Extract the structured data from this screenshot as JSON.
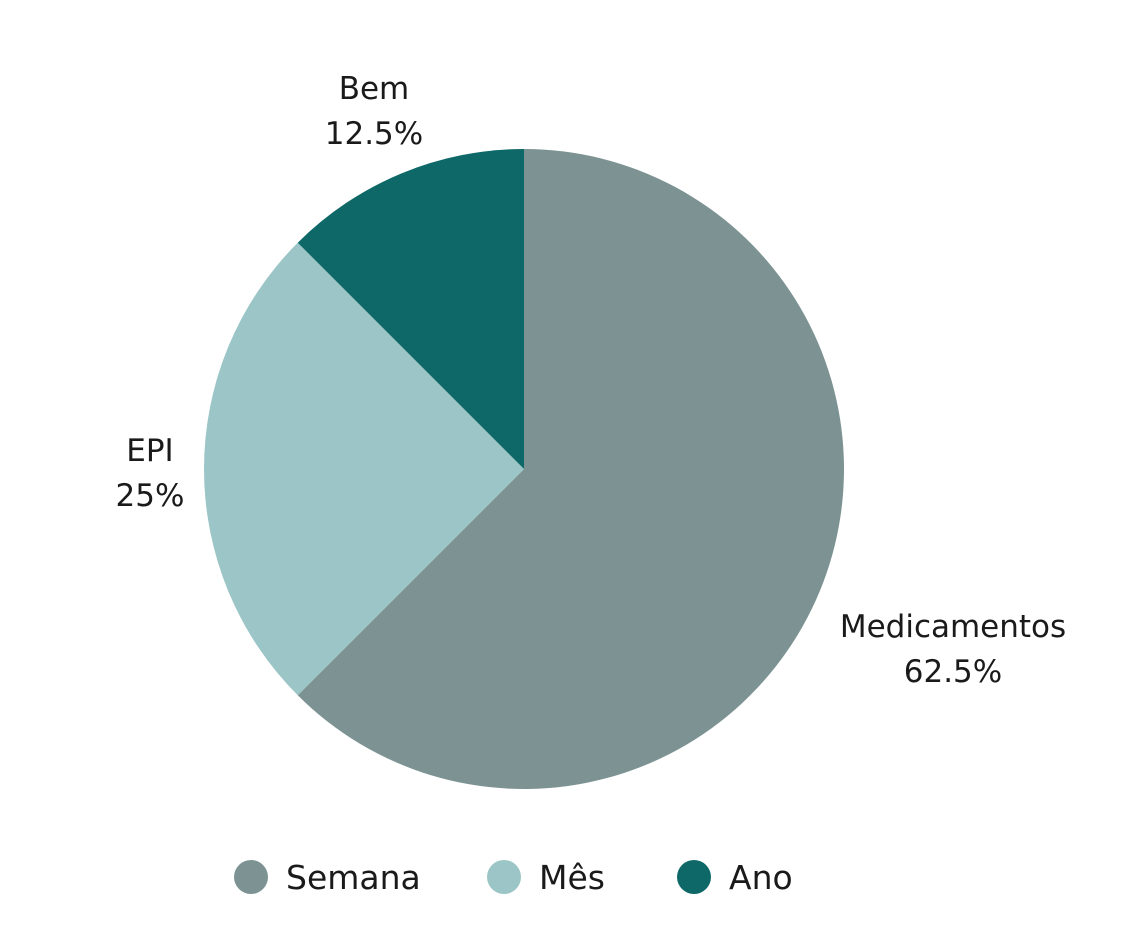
{
  "chart_data": {
    "type": "pie",
    "slices": [
      {
        "label": "Medicamentos",
        "value": 62.5,
        "value_label": "62.5%",
        "color": "#7d9393"
      },
      {
        "label": "EPI",
        "value": 25,
        "value_label": "25%",
        "color": "#9bc5c6"
      },
      {
        "label": "Bem",
        "value": 12.5,
        "value_label": "12.5%",
        "color": "#0e6868"
      }
    ],
    "start_angle_deg": 0,
    "direction": "clockwise",
    "legend": {
      "placement": "bottom",
      "entries": [
        {
          "name": "Semana",
          "color": "#7d9393"
        },
        {
          "name": "Mês",
          "color": "#9bc5c6"
        },
        {
          "name": "Ano",
          "color": "#0e6868"
        }
      ]
    }
  }
}
